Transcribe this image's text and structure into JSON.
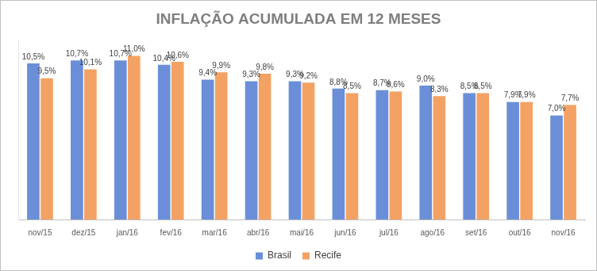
{
  "chart_data": {
    "type": "bar",
    "title": "INFLAÇÃO ACUMULADA EM 12 MESES",
    "categories": [
      "nov/15",
      "dez/15",
      "jan/16",
      "fev/16",
      "mar/16",
      "abr/16",
      "mai/16",
      "jun/16",
      "jul/16",
      "ago/16",
      "set/16",
      "out/16",
      "nov/16"
    ],
    "series": [
      {
        "name": "Brasil",
        "color": "#6a8fd8",
        "values": [
          10.5,
          10.7,
          10.7,
          10.4,
          9.4,
          9.3,
          9.3,
          8.8,
          8.7,
          9.0,
          8.5,
          7.9,
          7.0
        ],
        "value_labels": [
          "10,5%",
          "10,7%",
          "10,7%",
          "10,4%",
          "9,4%",
          "9,3%",
          "9,3%",
          "8,8%",
          "8,7%",
          "9,0%",
          "8,5%",
          "7,9%",
          "7,0%"
        ]
      },
      {
        "name": "Recife",
        "color": "#f4a263",
        "values": [
          9.5,
          10.1,
          11.0,
          10.6,
          9.9,
          9.8,
          9.2,
          8.5,
          8.6,
          8.3,
          8.5,
          7.9,
          7.7
        ],
        "value_labels": [
          "9,5%",
          "10,1%",
          "11,0%",
          "10,6%",
          "9,9%",
          "9,8%",
          "9,2%",
          "8,5%",
          "8,6%",
          "8,3%",
          "8,5%",
          "7,9%",
          "7,7%"
        ]
      }
    ],
    "ylim": [
      0,
      12
    ],
    "grid": false,
    "legend": "bottom",
    "data_labels": true,
    "tick_labels": "x"
  }
}
